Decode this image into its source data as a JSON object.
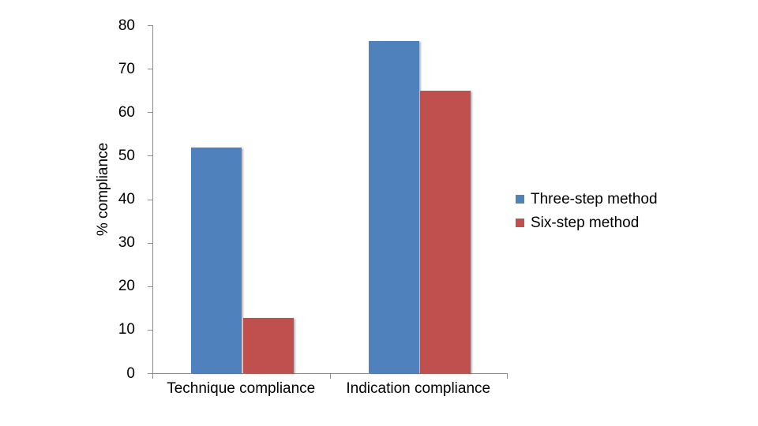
{
  "chart_data": {
    "type": "bar",
    "title": "",
    "categories": [
      "Technique compliance",
      "Indication compliance"
    ],
    "series": [
      {
        "name": "Three-step method",
        "color": "#4F81BD",
        "values": [
          51.9,
          76.3
        ]
      },
      {
        "name": "Six-step method",
        "color": "#C0504D",
        "values": [
          12.7,
          65
        ]
      }
    ],
    "xlabel": "",
    "ylabel": "% compliance",
    "ylim": [
      0,
      80
    ],
    "yticks": [
      0,
      10,
      20,
      30,
      40,
      50,
      60,
      70,
      80
    ],
    "grid": "off",
    "legend_position": "right",
    "background_color": "#FFFFFF",
    "axis_color": "#8C8C8C",
    "text_color": "#000000"
  }
}
